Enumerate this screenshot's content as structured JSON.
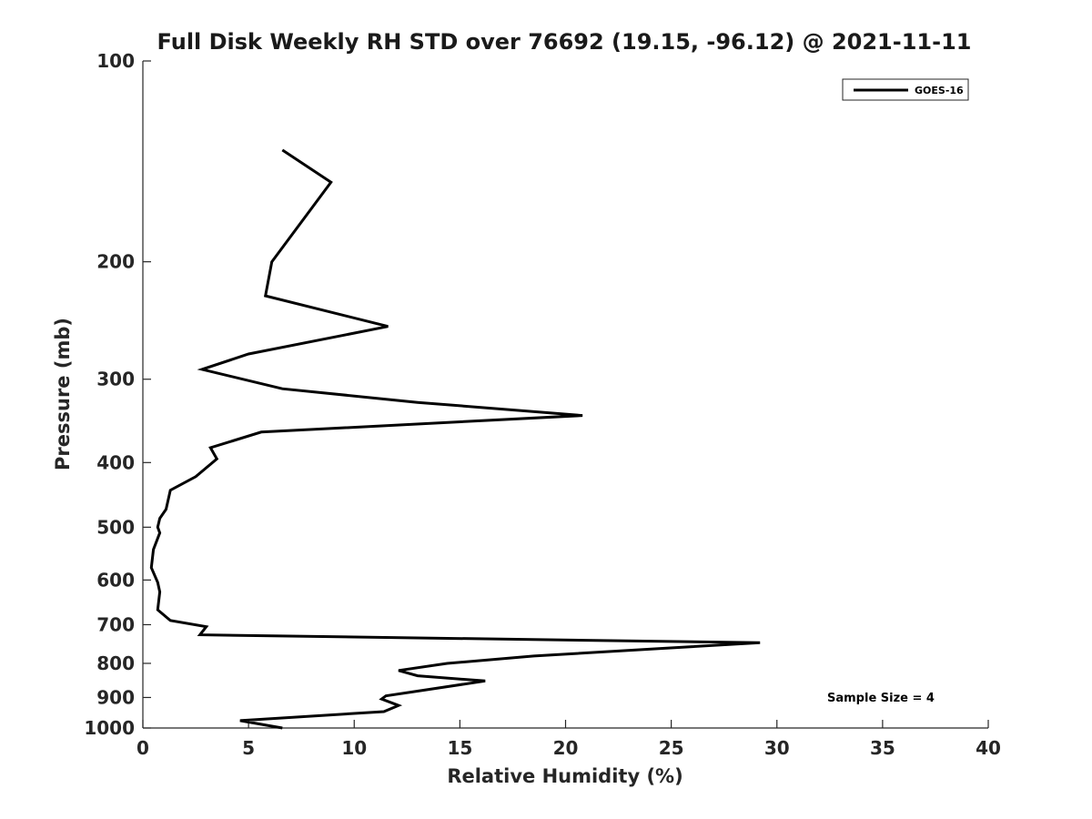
{
  "chart_data": {
    "type": "line",
    "title": "Full Disk Weekly RH STD over 76692 (19.15, -96.12) @ 2021-11-11",
    "xlabel": "Relative Humidity (%)",
    "ylabel": "Pressure (mb)",
    "xlim": [
      0,
      40
    ],
    "ylim": [
      100,
      1000
    ],
    "y_scale": "log",
    "y_reversed": true,
    "x_ticks": [
      0,
      5,
      10,
      15,
      20,
      25,
      30,
      35,
      40
    ],
    "y_ticks": [
      100,
      200,
      300,
      400,
      500,
      600,
      700,
      800,
      900,
      1000
    ],
    "grid": false,
    "legend_position": "top-right",
    "series": [
      {
        "name": "GOES-16",
        "color": "#000000",
        "points": [
          {
            "x": 6.6,
            "y": 136
          },
          {
            "x": 8.9,
            "y": 152
          },
          {
            "x": 6.1,
            "y": 200
          },
          {
            "x": 5.8,
            "y": 225
          },
          {
            "x": 11.6,
            "y": 250
          },
          {
            "x": 5.0,
            "y": 275
          },
          {
            "x": 2.8,
            "y": 290
          },
          {
            "x": 6.6,
            "y": 310
          },
          {
            "x": 13.0,
            "y": 325
          },
          {
            "x": 20.8,
            "y": 340
          },
          {
            "x": 5.6,
            "y": 360
          },
          {
            "x": 3.2,
            "y": 380
          },
          {
            "x": 3.5,
            "y": 395
          },
          {
            "x": 2.5,
            "y": 420
          },
          {
            "x": 1.3,
            "y": 440
          },
          {
            "x": 1.1,
            "y": 470
          },
          {
            "x": 0.8,
            "y": 485
          },
          {
            "x": 0.7,
            "y": 500
          },
          {
            "x": 0.8,
            "y": 510
          },
          {
            "x": 0.5,
            "y": 540
          },
          {
            "x": 0.4,
            "y": 575
          },
          {
            "x": 0.7,
            "y": 605
          },
          {
            "x": 0.8,
            "y": 625
          },
          {
            "x": 0.7,
            "y": 665
          },
          {
            "x": 1.3,
            "y": 690
          },
          {
            "x": 3.0,
            "y": 705
          },
          {
            "x": 2.7,
            "y": 725
          },
          {
            "x": 29.2,
            "y": 745
          },
          {
            "x": 24.5,
            "y": 760
          },
          {
            "x": 18.5,
            "y": 780
          },
          {
            "x": 14.4,
            "y": 800
          },
          {
            "x": 12.1,
            "y": 820
          },
          {
            "x": 13.0,
            "y": 835
          },
          {
            "x": 16.2,
            "y": 850
          },
          {
            "x": 11.5,
            "y": 895
          },
          {
            "x": 11.3,
            "y": 905
          },
          {
            "x": 12.1,
            "y": 925
          },
          {
            "x": 11.4,
            "y": 945
          },
          {
            "x": 4.6,
            "y": 975
          },
          {
            "x": 6.6,
            "y": 1000
          }
        ]
      }
    ],
    "annotations": [
      {
        "text": "Sample Size = 4"
      }
    ]
  }
}
